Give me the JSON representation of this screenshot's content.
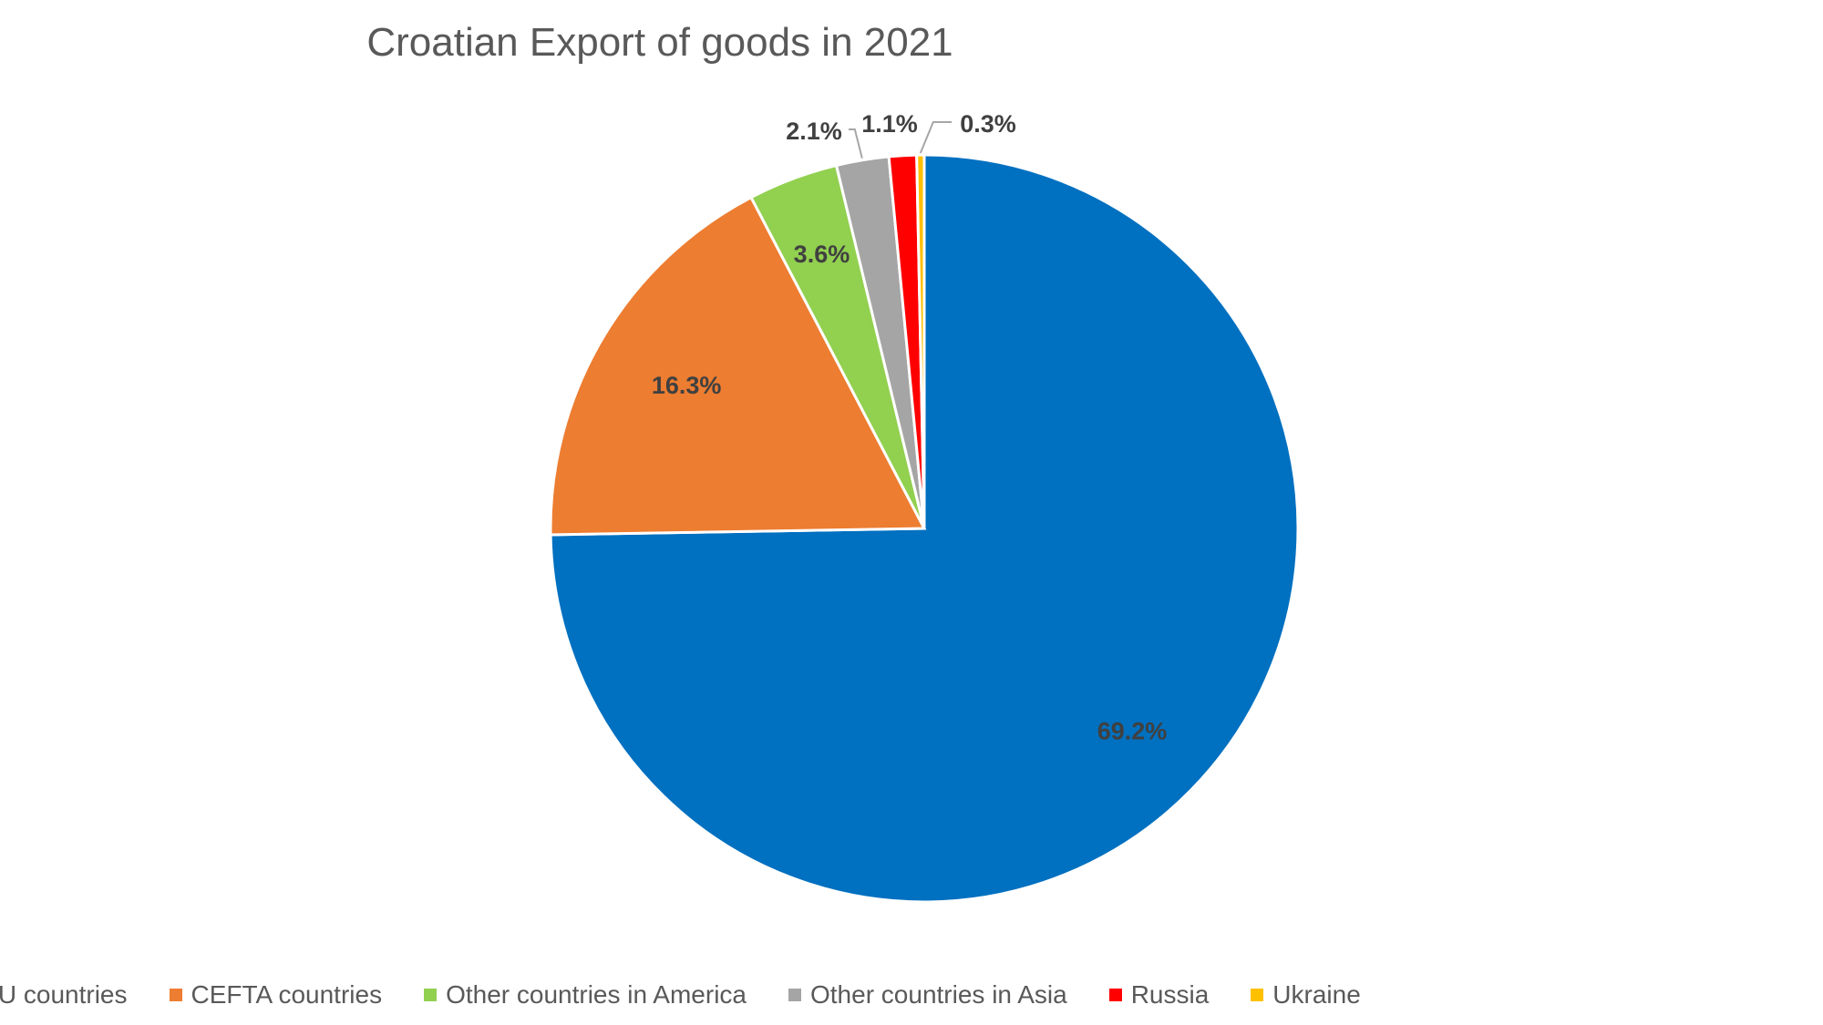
{
  "chart_data": {
    "type": "pie",
    "title": "Croatian Export of goods in 2021",
    "unit": "%",
    "legend_position": "bottom",
    "slices": [
      {
        "label": "EU countries",
        "value": 69.2,
        "display": "69.2%",
        "color": "#0070C0"
      },
      {
        "label": "CEFTA countries",
        "value": 16.3,
        "display": "16.3%",
        "color": "#ED7D31"
      },
      {
        "label": "Other countries in America",
        "value": 3.6,
        "display": "3.6%",
        "color": "#92D050"
      },
      {
        "label": "Other countries in Asia",
        "value": 2.1,
        "display": "2.1%",
        "color": "#A5A5A5"
      },
      {
        "label": "Russia",
        "value": 1.1,
        "display": "1.1%",
        "color": "#FF0000"
      },
      {
        "label": "Ukraine",
        "value": 0.3,
        "display": "0.3%",
        "color": "#FFC000"
      }
    ]
  }
}
